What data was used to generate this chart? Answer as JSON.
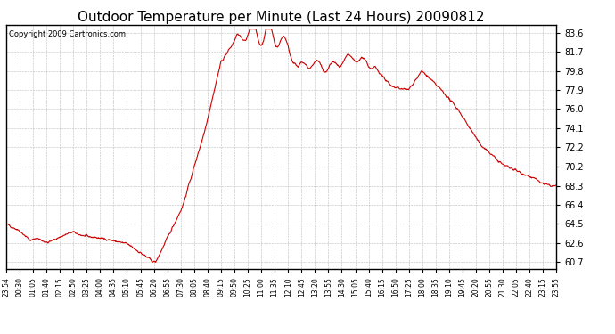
{
  "title": "Outdoor Temperature per Minute (Last 24 Hours) 20090812",
  "copyright": "Copyright 2009 Cartronics.com",
  "line_color": "#cc0000",
  "bg_color": "#ffffff",
  "plot_bg_color": "#ffffff",
  "grid_color": "#aaaaaa",
  "yticks": [
    60.7,
    62.6,
    64.5,
    66.4,
    68.3,
    70.2,
    72.2,
    74.1,
    76.0,
    77.9,
    79.8,
    81.7,
    83.6
  ],
  "ylim": [
    60.0,
    84.4
  ],
  "x_labels": [
    "23:54",
    "00:30",
    "01:05",
    "01:40",
    "02:15",
    "02:50",
    "03:25",
    "04:00",
    "04:35",
    "05:10",
    "05:45",
    "06:20",
    "06:55",
    "07:30",
    "08:05",
    "08:40",
    "09:15",
    "09:50",
    "10:25",
    "11:00",
    "11:35",
    "12:10",
    "12:45",
    "13:20",
    "13:55",
    "14:30",
    "15:05",
    "15:40",
    "16:15",
    "16:50",
    "17:25",
    "18:00",
    "18:35",
    "19:10",
    "19:45",
    "20:20",
    "20:55",
    "21:30",
    "22:05",
    "22:40",
    "23:15",
    "23:55"
  ],
  "line_width": 0.8,
  "title_fontsize": 11,
  "tick_fontsize": 7,
  "xtick_fontsize": 5.5,
  "copyright_fontsize": 6
}
